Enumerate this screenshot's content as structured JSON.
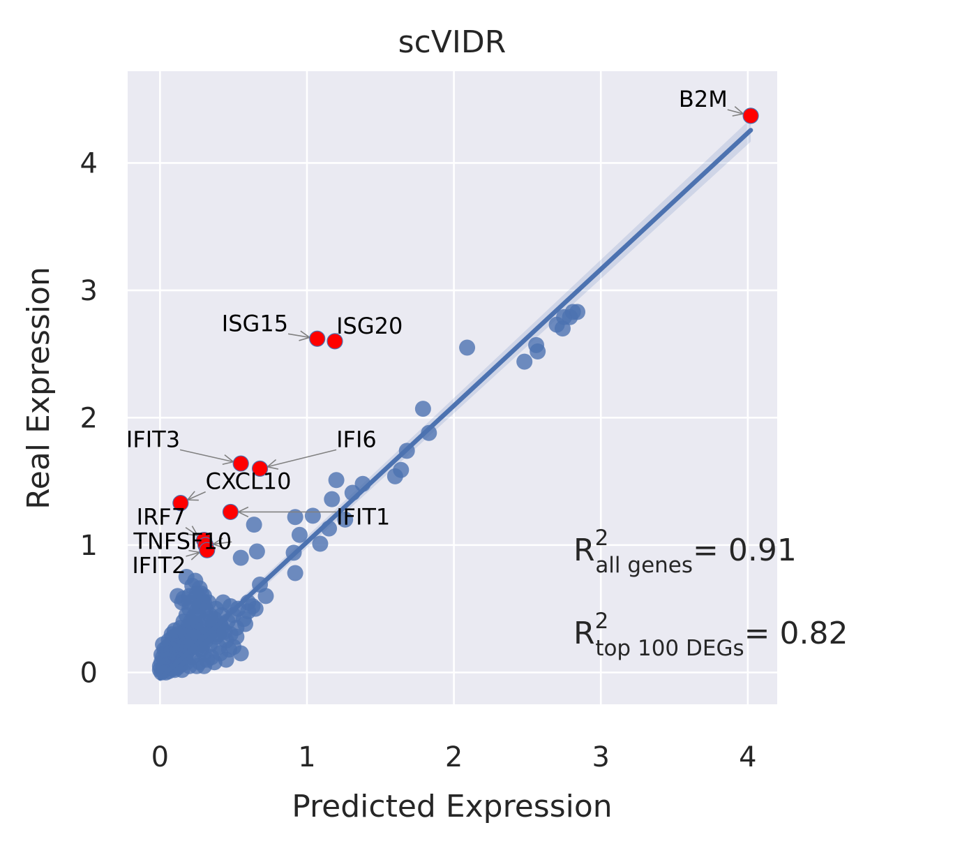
{
  "chart_data": {
    "type": "scatter",
    "title": "scVIDR",
    "xlabel": "Predicted Expression",
    "ylabel": "Real Expression",
    "xlim": [
      -0.22,
      4.2
    ],
    "ylim": [
      -0.25,
      4.72
    ],
    "xticks": [
      0,
      1,
      2,
      3,
      4
    ],
    "yticks": [
      0,
      1,
      2,
      3,
      4
    ],
    "grid": true,
    "colors": {
      "background": "#eaeaf2",
      "grid": "#ffffff",
      "points": "#4c72b0",
      "highlight": "#ff0000",
      "regression": "#4c72b0",
      "arrow": "#808080"
    },
    "regression": {
      "slope": 1.0707,
      "intercept": -0.047,
      "x_range": [
        0.0,
        4.02
      ]
    },
    "points": [
      [
        2.09,
        2.55
      ],
      [
        2.48,
        2.44
      ],
      [
        2.56,
        2.57
      ],
      [
        2.57,
        2.52
      ],
      [
        2.7,
        2.73
      ],
      [
        2.75,
        2.79
      ],
      [
        2.74,
        2.7
      ],
      [
        2.81,
        2.83
      ],
      [
        2.84,
        2.83
      ],
      [
        2.79,
        2.79
      ],
      [
        1.79,
        2.07
      ],
      [
        1.83,
        1.88
      ],
      [
        1.68,
        1.74
      ],
      [
        1.64,
        1.59
      ],
      [
        1.6,
        1.54
      ],
      [
        1.2,
        1.51
      ],
      [
        1.38,
        1.48
      ],
      [
        1.31,
        1.41
      ],
      [
        1.17,
        1.36
      ],
      [
        1.26,
        1.2
      ],
      [
        1.15,
        1.13
      ],
      [
        0.92,
        1.22
      ],
      [
        1.04,
        1.23
      ],
      [
        1.09,
        1.01
      ],
      [
        0.95,
        1.08
      ],
      [
        0.91,
        0.94
      ],
      [
        0.92,
        0.78
      ],
      [
        0.64,
        1.16
      ],
      [
        0.66,
        0.95
      ],
      [
        0.55,
        0.9
      ],
      [
        0.68,
        0.69
      ],
      [
        0.72,
        0.6
      ],
      [
        0.6,
        0.55
      ],
      [
        0.65,
        0.5
      ],
      [
        0.48,
        0.52
      ],
      [
        0.5,
        0.45
      ],
      [
        0.58,
        0.38
      ],
      [
        0.42,
        0.35
      ],
      [
        0.35,
        0.32
      ],
      [
        0.32,
        0.28
      ],
      [
        0.28,
        0.25
      ],
      [
        0.25,
        0.22
      ],
      [
        0.22,
        0.2
      ],
      [
        0.2,
        0.18
      ],
      [
        0.18,
        0.15
      ],
      [
        0.15,
        0.13
      ],
      [
        0.12,
        0.1
      ],
      [
        0.1,
        0.08
      ],
      [
        0.08,
        0.06
      ],
      [
        0.05,
        0.04
      ],
      [
        0.03,
        0.02
      ],
      [
        0.02,
        0.01
      ],
      [
        0.01,
        0.0
      ],
      [
        0.0,
        0.02
      ],
      [
        0.0,
        0.05
      ],
      [
        0.01,
        0.08
      ],
      [
        0.02,
        0.12
      ],
      [
        0.04,
        0.15
      ],
      [
        0.05,
        0.2
      ],
      [
        0.07,
        0.22
      ],
      [
        0.09,
        0.28
      ],
      [
        0.12,
        0.3
      ],
      [
        0.14,
        0.35
      ],
      [
        0.16,
        0.4
      ],
      [
        0.18,
        0.45
      ],
      [
        0.2,
        0.5
      ],
      [
        0.15,
        0.55
      ],
      [
        0.2,
        0.6
      ],
      [
        0.25,
        0.62
      ],
      [
        0.22,
        0.68
      ],
      [
        0.18,
        0.75
      ],
      [
        0.28,
        0.62
      ],
      [
        0.3,
        0.55
      ],
      [
        0.26,
        0.45
      ],
      [
        0.24,
        0.38
      ],
      [
        0.3,
        0.4
      ],
      [
        0.34,
        0.45
      ],
      [
        0.38,
        0.5
      ],
      [
        0.42,
        0.45
      ],
      [
        0.46,
        0.4
      ],
      [
        0.4,
        0.3
      ],
      [
        0.45,
        0.25
      ],
      [
        0.5,
        0.2
      ],
      [
        0.55,
        0.15
      ],
      [
        0.45,
        0.1
      ],
      [
        0.35,
        0.12
      ],
      [
        0.3,
        0.15
      ],
      [
        0.3,
        0.05
      ],
      [
        0.25,
        0.05
      ],
      [
        0.2,
        0.05
      ],
      [
        0.15,
        0.02
      ],
      [
        0.1,
        0.02
      ],
      [
        0.06,
        0.01
      ],
      [
        0.04,
        0.0
      ],
      [
        0.03,
        0.05
      ],
      [
        0.06,
        0.08
      ],
      [
        0.08,
        0.12
      ],
      [
        0.1,
        0.15
      ],
      [
        0.12,
        0.18
      ],
      [
        0.14,
        0.22
      ],
      [
        0.16,
        0.25
      ],
      [
        0.18,
        0.28
      ],
      [
        0.2,
        0.3
      ],
      [
        0.22,
        0.32
      ],
      [
        0.24,
        0.35
      ],
      [
        0.26,
        0.33
      ],
      [
        0.28,
        0.3
      ],
      [
        0.32,
        0.35
      ],
      [
        0.36,
        0.38
      ],
      [
        0.38,
        0.28
      ],
      [
        0.34,
        0.22
      ],
      [
        0.28,
        0.18
      ],
      [
        0.22,
        0.12
      ],
      [
        0.18,
        0.08
      ],
      [
        0.14,
        0.06
      ],
      [
        0.12,
        0.04
      ],
      [
        0.09,
        0.03
      ],
      [
        0.07,
        0.04
      ],
      [
        0.05,
        0.06
      ],
      [
        0.04,
        0.1
      ],
      [
        0.06,
        0.14
      ],
      [
        0.08,
        0.18
      ],
      [
        0.1,
        0.22
      ],
      [
        0.12,
        0.25
      ],
      [
        0.15,
        0.28
      ],
      [
        0.17,
        0.32
      ],
      [
        0.19,
        0.36
      ],
      [
        0.21,
        0.4
      ],
      [
        0.23,
        0.44
      ],
      [
        0.25,
        0.48
      ],
      [
        0.27,
        0.52
      ],
      [
        0.29,
        0.56
      ],
      [
        0.31,
        0.5
      ],
      [
        0.33,
        0.42
      ],
      [
        0.37,
        0.42
      ],
      [
        0.41,
        0.38
      ],
      [
        0.44,
        0.32
      ],
      [
        0.48,
        0.3
      ],
      [
        0.52,
        0.35
      ],
      [
        0.57,
        0.42
      ],
      [
        0.6,
        0.48
      ],
      [
        0.63,
        0.52
      ],
      [
        0.12,
        0.6
      ],
      [
        0.16,
        0.58
      ],
      [
        0.2,
        0.55
      ],
      [
        0.24,
        0.58
      ],
      [
        0.27,
        0.66
      ],
      [
        0.24,
        0.72
      ],
      [
        0.3,
        0.6
      ],
      [
        0.33,
        0.55
      ],
      [
        0.43,
        0.55
      ],
      [
        0.53,
        0.5
      ],
      [
        0.36,
        0.3
      ],
      [
        0.4,
        0.2
      ],
      [
        0.47,
        0.18
      ],
      [
        0.52,
        0.28
      ],
      [
        0.27,
        0.08
      ],
      [
        0.32,
        0.1
      ],
      [
        0.37,
        0.08
      ],
      [
        0.41,
        0.15
      ],
      [
        0.01,
        0.14
      ],
      [
        0.03,
        0.18
      ],
      [
        0.02,
        0.22
      ],
      [
        0.06,
        0.25
      ],
      [
        0.08,
        0.3
      ],
      [
        0.1,
        0.33
      ],
      [
        0.11,
        0.2
      ],
      [
        0.13,
        0.1
      ],
      [
        0.07,
        0.15
      ],
      [
        0.09,
        0.1
      ],
      [
        0.05,
        0.12
      ],
      [
        0.17,
        0.12
      ],
      [
        0.19,
        0.2
      ],
      [
        0.21,
        0.25
      ],
      [
        0.23,
        0.28
      ],
      [
        0.26,
        0.2
      ],
      [
        0.29,
        0.22
      ],
      [
        0.31,
        0.25
      ],
      [
        0.33,
        0.3
      ]
    ],
    "highlighted": [
      {
        "gene": "B2M",
        "x": 4.02,
        "y": 4.37
      },
      {
        "gene": "ISG15",
        "x": 1.07,
        "y": 2.62
      },
      {
        "gene": "ISG20",
        "x": 1.19,
        "y": 2.6
      },
      {
        "gene": "IFIT3",
        "x": 0.55,
        "y": 1.64
      },
      {
        "gene": "IFI6",
        "x": 0.68,
        "y": 1.6
      },
      {
        "gene": "CXCL10",
        "x": 0.14,
        "y": 1.33
      },
      {
        "gene": "IFIT1",
        "x": 0.48,
        "y": 1.26
      },
      {
        "gene": "IRF7",
        "x": 0.3,
        "y": 1.04
      },
      {
        "gene": "TNFSF10",
        "x": 0.31,
        "y": 1.0
      },
      {
        "gene": "IFIT2",
        "x": 0.32,
        "y": 0.96
      }
    ],
    "annotations": [
      {
        "text": "B2M",
        "x": 3.53,
        "y": 4.44,
        "target": [
          4.02,
          4.37
        ]
      },
      {
        "text": "ISG15",
        "x": 0.42,
        "y": 2.68,
        "target": [
          1.07,
          2.62
        ]
      },
      {
        "text": "ISG20",
        "x": 1.2,
        "y": 2.66,
        "target": [
          1.19,
          2.6
        ]
      },
      {
        "text": "IFIT3",
        "x": -0.23,
        "y": 1.77,
        "target": [
          0.55,
          1.64
        ]
      },
      {
        "text": "IFI6",
        "x": 1.2,
        "y": 1.77,
        "target": [
          0.68,
          1.6
        ]
      },
      {
        "text": "CXCL10",
        "x": 0.31,
        "y": 1.44,
        "target": [
          0.14,
          1.33
        ]
      },
      {
        "text": "IFIT1",
        "x": 1.2,
        "y": 1.16,
        "target": [
          0.48,
          1.26
        ]
      },
      {
        "text": "IRF7",
        "x": -0.16,
        "y": 1.16,
        "target": [
          0.3,
          1.04
        ]
      },
      {
        "text": "TNFSF10",
        "x": -0.18,
        "y": 0.97,
        "target": [
          0.31,
          1.0
        ]
      },
      {
        "text": "IFIT2",
        "x": -0.19,
        "y": 0.78,
        "target": [
          0.32,
          0.96
        ]
      }
    ],
    "r2": [
      {
        "base": "R",
        "sup": "2",
        "sub": "all genes",
        "value": "= 0.91"
      },
      {
        "base": "R",
        "sup": "2",
        "sub": "top 100 DEGs",
        "value": "= 0.82"
      }
    ]
  }
}
